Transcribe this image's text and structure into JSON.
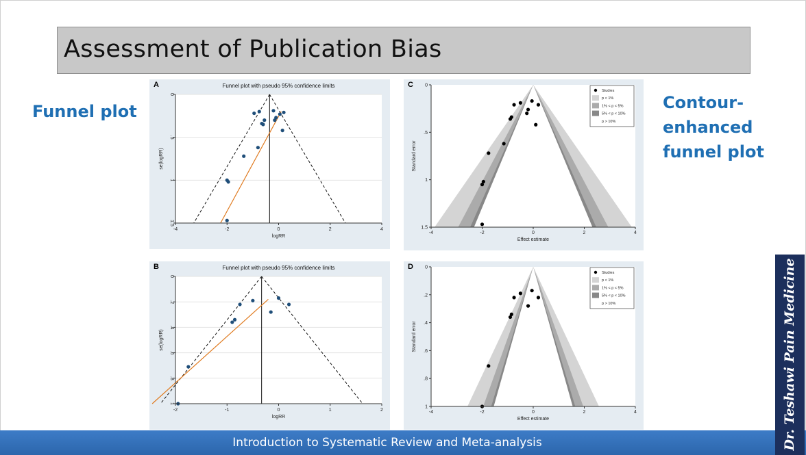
{
  "slide": {
    "title": "Assessment of Publication Bias",
    "left_label": "Funnel plot",
    "right_label_lines": [
      "Contour-",
      "enhanced",
      "funnel plot"
    ],
    "footer": "Introduction to Systematic Review and Meta-analysis",
    "banner": "Dr. Teshawi Pain Medicine"
  },
  "colors": {
    "title_bg": "#c8c8c8",
    "label_blue": "#1f6fb3",
    "panel_bg": "#e5ecf2",
    "funnel_point": "#1f4e79",
    "regression_line": "#e07b20",
    "footer": "#3572bb",
    "banner": "#1c2f5c"
  },
  "chart_data": [
    {
      "type": "scatter",
      "panel": "A",
      "title": "Funnel plot with pseudo 95% confidence limits",
      "xlabel": "logRR",
      "ylabel": "se(logRR)",
      "xlim": [
        -4,
        4
      ],
      "ylim": [
        0,
        1.5
      ],
      "y_reversed": true,
      "xticks": [
        -4,
        -2,
        0,
        2,
        4
      ],
      "yticks": [
        0,
        0.5,
        1,
        1.5
      ],
      "ytick_labels": [
        "0",
        ".5",
        "1",
        "1.5"
      ],
      "pooled_estimate": -0.35,
      "regression_line": [
        [
          -2.25,
          1.5
        ],
        [
          0.1,
          0.2
        ]
      ],
      "points": [
        {
          "x": -0.95,
          "y": 0.22
        },
        {
          "x": -0.75,
          "y": 0.2
        },
        {
          "x": -0.2,
          "y": 0.19
        },
        {
          "x": 0.2,
          "y": 0.21
        },
        {
          "x": 0.05,
          "y": 0.23
        },
        {
          "x": -0.55,
          "y": 0.3
        },
        {
          "x": -0.1,
          "y": 0.27
        },
        {
          "x": -0.15,
          "y": 0.3
        },
        {
          "x": -0.65,
          "y": 0.34
        },
        {
          "x": -0.6,
          "y": 0.35
        },
        {
          "x": 0.15,
          "y": 0.42
        },
        {
          "x": -0.8,
          "y": 0.62
        },
        {
          "x": -1.35,
          "y": 0.72
        },
        {
          "x": -2.0,
          "y": 1.0
        },
        {
          "x": -1.95,
          "y": 1.02
        },
        {
          "x": -2.0,
          "y": 1.47
        }
      ]
    },
    {
      "type": "scatter",
      "panel": "B",
      "title": "Funnel plot with pseudo 95% confidence limits",
      "xlabel": "logRR",
      "ylabel": "se(logRR)",
      "xlim": [
        -2,
        2
      ],
      "ylim": [
        0,
        1
      ],
      "y_reversed": true,
      "xticks": [
        -2,
        -1,
        0,
        1,
        2
      ],
      "yticks": [
        0,
        0.2,
        0.4,
        0.6,
        0.8,
        1
      ],
      "ytick_labels": [
        "0",
        ".2",
        ".4",
        ".6",
        ".8",
        "1"
      ],
      "pooled_estimate": -0.33,
      "regression_line": [
        [
          -2.45,
          1.0
        ],
        [
          -0.2,
          0.18
        ]
      ],
      "points": [
        {
          "x": -0.5,
          "y": 0.19
        },
        {
          "x": 0.0,
          "y": 0.17
        },
        {
          "x": -0.75,
          "y": 0.22
        },
        {
          "x": 0.2,
          "y": 0.22
        },
        {
          "x": -0.15,
          "y": 0.28
        },
        {
          "x": -0.85,
          "y": 0.34
        },
        {
          "x": -0.9,
          "y": 0.36
        },
        {
          "x": -1.75,
          "y": 0.71
        },
        {
          "x": -1.95,
          "y": 1.0
        }
      ]
    },
    {
      "type": "scatter",
      "panel": "C",
      "subtype": "contour-enhanced funnel",
      "xlabel": "Effect estimate",
      "ylabel": "Standard error",
      "xlim": [
        -4,
        4
      ],
      "ylim": [
        0,
        1.5
      ],
      "y_reversed": true,
      "xticks": [
        -4,
        -2,
        0,
        2,
        4
      ],
      "yticks": [
        0,
        0.5,
        1,
        1.5
      ],
      "ytick_labels": [
        "0",
        ".5",
        "1",
        "1.5"
      ],
      "z_contours": [
        1.645,
        1.96,
        2.576
      ],
      "legend": [
        "Studies",
        "p < 1%",
        "1% < p < 5%",
        "5% < p < 10%",
        "p > 10%"
      ],
      "legend_position": "top-right",
      "points": [
        {
          "x": -0.05,
          "y": 0.17
        },
        {
          "x": -0.5,
          "y": 0.19
        },
        {
          "x": -0.75,
          "y": 0.21
        },
        {
          "x": 0.2,
          "y": 0.21
        },
        {
          "x": -0.2,
          "y": 0.26
        },
        {
          "x": -0.25,
          "y": 0.3
        },
        {
          "x": -0.85,
          "y": 0.34
        },
        {
          "x": -0.9,
          "y": 0.36
        },
        {
          "x": 0.1,
          "y": 0.42
        },
        {
          "x": -1.15,
          "y": 0.62
        },
        {
          "x": -1.75,
          "y": 0.72
        },
        {
          "x": -1.95,
          "y": 1.02
        },
        {
          "x": -2.0,
          "y": 1.05
        },
        {
          "x": -2.0,
          "y": 1.47
        }
      ]
    },
    {
      "type": "scatter",
      "panel": "D",
      "subtype": "contour-enhanced funnel",
      "xlabel": "Effect estimate",
      "ylabel": "Standard error",
      "xlim": [
        -4,
        4
      ],
      "ylim": [
        0,
        1
      ],
      "y_reversed": true,
      "xticks": [
        -4,
        -2,
        0,
        2,
        4
      ],
      "yticks": [
        0,
        0.2,
        0.4,
        0.6,
        0.8,
        1
      ],
      "ytick_labels": [
        "0",
        ".2",
        ".4",
        ".6",
        ".8",
        "1"
      ],
      "z_contours": [
        1.645,
        1.96,
        2.576
      ],
      "legend": [
        "Studies",
        "p < 1%",
        "1% < p < 5%",
        "5% < p < 10%",
        "p > 10%"
      ],
      "legend_position": "top-right",
      "points": [
        {
          "x": -0.05,
          "y": 0.17
        },
        {
          "x": -0.5,
          "y": 0.19
        },
        {
          "x": -0.75,
          "y": 0.22
        },
        {
          "x": 0.2,
          "y": 0.22
        },
        {
          "x": -0.2,
          "y": 0.28
        },
        {
          "x": -0.85,
          "y": 0.34
        },
        {
          "x": -0.9,
          "y": 0.36
        },
        {
          "x": -1.75,
          "y": 0.71
        },
        {
          "x": -2.0,
          "y": 1.0
        }
      ]
    }
  ]
}
